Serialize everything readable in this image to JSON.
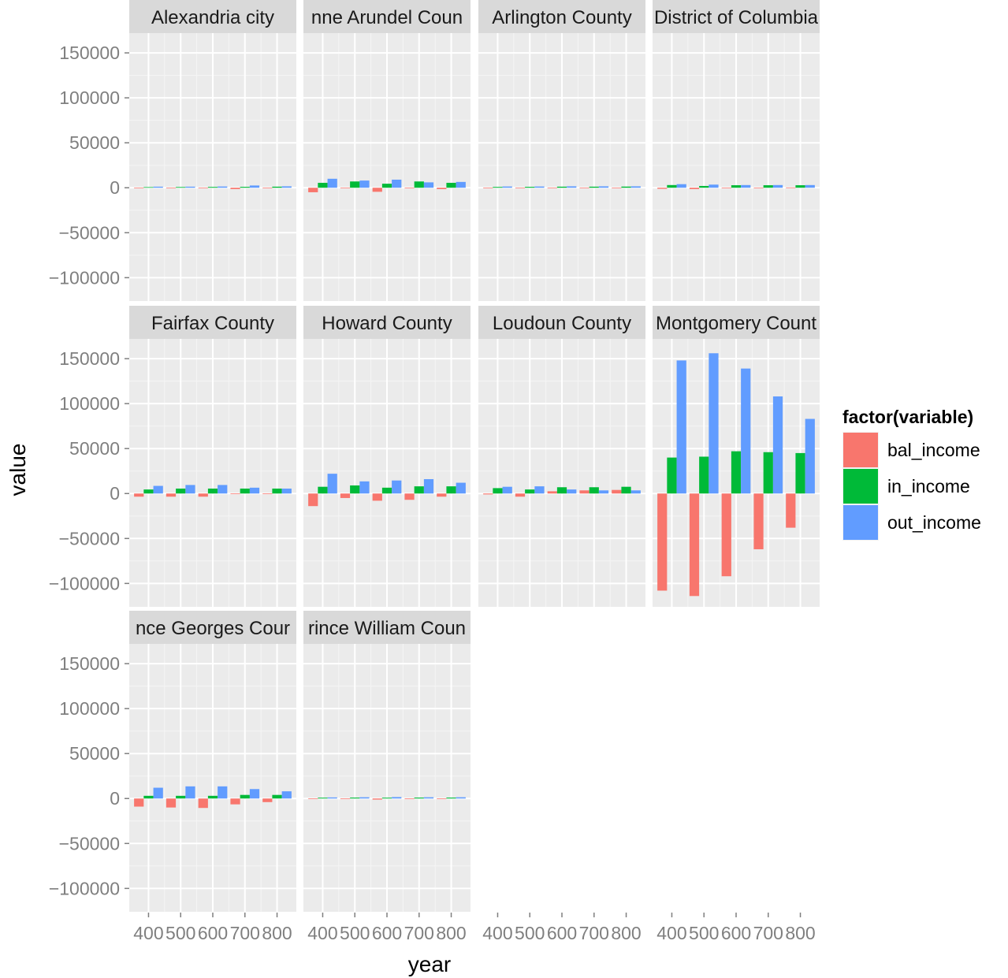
{
  "chart_data": {
    "type": "bar",
    "layout": "facet_wrap",
    "facet_columns": 4,
    "xlabel": "year",
    "ylabel": "value",
    "x_ticks": [
      400,
      500,
      600,
      700,
      800
    ],
    "x_tick_labels": [
      "400",
      "500",
      "600",
      "700",
      "800"
    ],
    "y_ticks": [
      -100000,
      -50000,
      0,
      50000,
      100000,
      150000
    ],
    "y_tick_labels": [
      "−100000",
      "−50000",
      "0",
      "50000",
      "100000",
      "150000"
    ],
    "ylim": [
      -126000,
      172000
    ],
    "xlim": [
      340,
      860
    ],
    "legend": {
      "title": "factor(variable)",
      "position": "right",
      "entries": [
        "bal_income",
        "in_income",
        "out_income"
      ],
      "colors": [
        "#F8766D",
        "#00BA38",
        "#619CFF"
      ]
    },
    "grid": true,
    "panel_background": "#EBEBEB",
    "strip_background": "#D9D9D9",
    "series_names": [
      "bal_income",
      "in_income",
      "out_income"
    ],
    "x": [
      400,
      500,
      600,
      700,
      800
    ],
    "facets": [
      {
        "label": "Alexandria city",
        "values": {
          "bal_income": [
            -500,
            -400,
            -500,
            -1500,
            -400
          ],
          "in_income": [
            700,
            800,
            900,
            1000,
            1200
          ],
          "out_income": [
            1200,
            1200,
            1400,
            2500,
            1600
          ]
        }
      },
      {
        "label": "nne Arundel Coun",
        "values": {
          "bal_income": [
            -5000,
            -400,
            -4500,
            -600,
            -1500
          ],
          "in_income": [
            5500,
            7000,
            4500,
            7000,
            5500
          ],
          "out_income": [
            10000,
            8000,
            9000,
            6000,
            6500
          ]
        }
      },
      {
        "label": "Arlington County",
        "values": {
          "bal_income": [
            -500,
            -400,
            -400,
            -400,
            -300
          ],
          "in_income": [
            900,
            1000,
            1200,
            1200,
            1300
          ],
          "out_income": [
            1400,
            1400,
            1600,
            1600,
            1600
          ]
        }
      },
      {
        "label": "District of Columbia",
        "values": {
          "bal_income": [
            -1200,
            -1500,
            -500,
            -400,
            300
          ],
          "in_income": [
            3000,
            2000,
            2800,
            2800,
            2800
          ],
          "out_income": [
            4000,
            3500,
            3000,
            3000,
            3000
          ]
        }
      },
      {
        "label": "Fairfax County",
        "values": {
          "bal_income": [
            -3500,
            -3500,
            -3500,
            -500,
            -500
          ],
          "in_income": [
            4500,
            5500,
            5500,
            5500,
            5500
          ],
          "out_income": [
            8500,
            9500,
            9500,
            6500,
            5500
          ]
        }
      },
      {
        "label": "Howard County",
        "values": {
          "bal_income": [
            -14000,
            -5000,
            -8000,
            -7000,
            -3500
          ],
          "in_income": [
            7500,
            9000,
            6500,
            8000,
            8000
          ],
          "out_income": [
            22000,
            13500,
            14500,
            16000,
            12000
          ]
        }
      },
      {
        "label": "Loudoun County",
        "values": {
          "bal_income": [
            -1000,
            -3500,
            2500,
            3500,
            4000
          ],
          "in_income": [
            6000,
            4500,
            7000,
            7000,
            7500
          ],
          "out_income": [
            7500,
            8000,
            4500,
            3500,
            3500
          ]
        }
      },
      {
        "label": "Montgomery Count",
        "values": {
          "bal_income": [
            -108000,
            -114000,
            -92000,
            -62000,
            -38000
          ],
          "in_income": [
            40000,
            41000,
            47000,
            46000,
            45000
          ],
          "out_income": [
            148000,
            156000,
            139000,
            108000,
            83000
          ]
        }
      },
      {
        "label": "nce Georges Cour",
        "values": {
          "bal_income": [
            -9000,
            -10000,
            -10500,
            -6500,
            -4000
          ],
          "in_income": [
            3000,
            3000,
            3000,
            4000,
            4000
          ],
          "out_income": [
            12000,
            13500,
            13500,
            10500,
            8000
          ]
        }
      },
      {
        "label": "rince William Coun",
        "values": {
          "bal_income": [
            -500,
            -400,
            -1200,
            -400,
            -400
          ],
          "in_income": [
            900,
            1000,
            900,
            1000,
            1000
          ],
          "out_income": [
            1200,
            1400,
            1600,
            1400,
            1400
          ]
        }
      }
    ],
    "x_axis_panels": [
      8,
      9,
      2,
      3
    ]
  }
}
